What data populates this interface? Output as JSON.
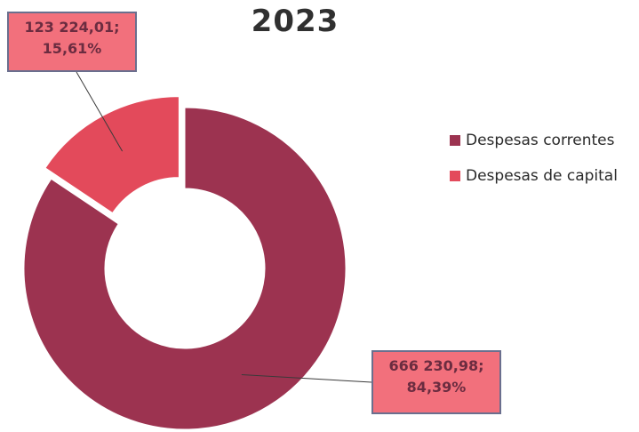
{
  "chart_data": {
    "type": "pie",
    "style": "doughnut",
    "title": "2023",
    "categories": [
      "Despesas correntes",
      "Despesas de capital"
    ],
    "values": [
      666230.98,
      123224.01
    ],
    "percentages": [
      84.39,
      15.61
    ],
    "data_labels": [
      {
        "value_text": "666 230,98;",
        "percent_text": "84,39%"
      },
      {
        "value_text": "123 224,01;",
        "percent_text": "15,61%"
      }
    ],
    "colors": [
      "#9c3350",
      "#e34a5b"
    ],
    "label_box_color": "#f2707c",
    "legend_position": "right",
    "exploded_slice": "Despesas de capital"
  }
}
